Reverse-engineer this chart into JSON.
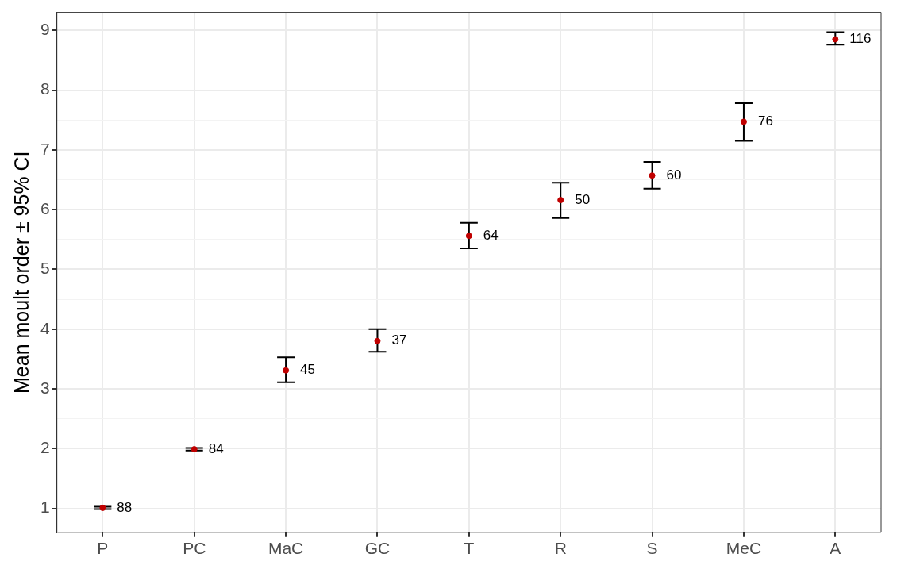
{
  "chart_data": {
    "type": "scatter",
    "ylabel": "Mean moult order ± 95% CI",
    "categories": [
      "P",
      "PC",
      "MaC",
      "GC",
      "T",
      "R",
      "S",
      "MeC",
      "A"
    ],
    "values": [
      1.01,
      1.99,
      3.31,
      3.8,
      5.56,
      6.16,
      6.57,
      7.47,
      8.85
    ],
    "errors": [
      [
        0.99,
        1.03
      ],
      [
        1.97,
        2.01
      ],
      [
        3.11,
        3.53
      ],
      [
        3.62,
        4.0
      ],
      [
        5.35,
        5.78
      ],
      [
        5.86,
        6.45
      ],
      [
        6.35,
        6.8
      ],
      [
        7.15,
        7.78
      ],
      [
        8.76,
        8.97
      ]
    ],
    "color": "#c00000",
    "marker": "circle",
    "grid": true,
    "ylim": [
      0.6,
      9.3
    ],
    "yticks": [
      1,
      {
        "value": 1.5,
        "label": null
      },
      2,
      {
        "value": 2.5,
        "label": null
      },
      3,
      {
        "value": 3.5,
        "label": null
      },
      4,
      {
        "value": 4.5,
        "label": null
      },
      5,
      {
        "value": 5.5,
        "label": null
      },
      6,
      {
        "value": 6.5,
        "label": null
      },
      7,
      {
        "value": 7.5,
        "label": null
      },
      8,
      {
        "value": 8.5,
        "label": null
      },
      9
    ],
    "annotations": [
      {
        "text": "88",
        "x": "P",
        "y": 1.01
      },
      {
        "text": "84",
        "x": "PC",
        "y": 1.99
      },
      {
        "text": "45",
        "x": "MaC",
        "y": 3.31
      },
      {
        "text": "37",
        "x": "GC",
        "y": 3.8
      },
      {
        "text": "64",
        "x": "T",
        "y": 5.56
      },
      {
        "text": "50",
        "x": "R",
        "y": 6.16
      },
      {
        "text": "60",
        "x": "S",
        "y": 6.57
      },
      {
        "text": "76",
        "x": "MeC",
        "y": 7.47
      },
      {
        "text": "116",
        "x": "A",
        "y": 8.85
      }
    ]
  }
}
